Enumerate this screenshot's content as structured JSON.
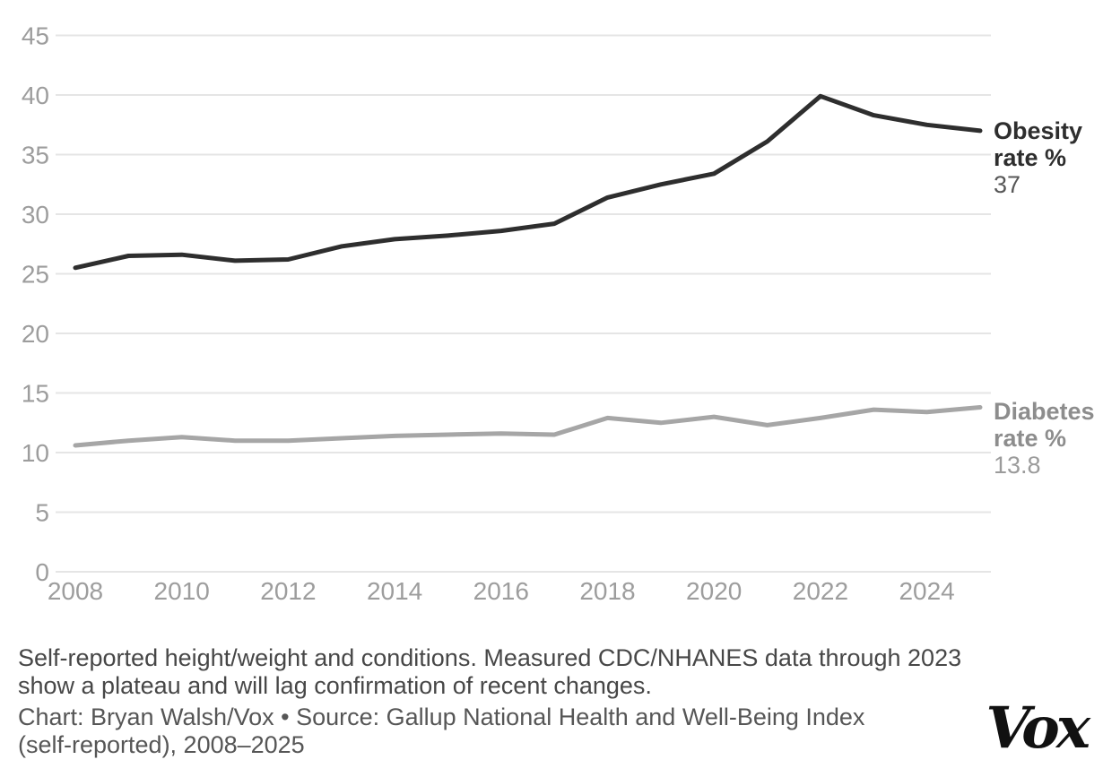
{
  "chart_data": {
    "type": "line",
    "x": [
      2008,
      2009,
      2010,
      2011,
      2012,
      2013,
      2014,
      2015,
      2016,
      2017,
      2018,
      2019,
      2020,
      2021,
      2022,
      2023,
      2024,
      2025
    ],
    "series": [
      {
        "key": "diabetes",
        "name": "Diabetes rate %",
        "values": [
          10.6,
          11.0,
          11.3,
          11.0,
          11.0,
          11.2,
          11.4,
          11.5,
          11.6,
          11.5,
          12.9,
          12.5,
          13.0,
          12.3,
          12.9,
          13.6,
          13.4,
          13.8
        ],
        "color": "#a6a6a6"
      },
      {
        "key": "obesity",
        "name": "Obesity rate %",
        "values": [
          25.5,
          26.5,
          26.6,
          26.1,
          26.2,
          27.3,
          27.9,
          28.2,
          28.6,
          29.2,
          31.4,
          32.5,
          33.4,
          36.1,
          39.9,
          38.3,
          37.5,
          37.0
        ],
        "color": "#2e2e2e"
      }
    ],
    "ylim": [
      0,
      45
    ],
    "y_tick_step": 5,
    "y_tick_labels": [
      "0",
      "5",
      "10",
      "15",
      "20",
      "25",
      "30",
      "35",
      "40",
      "45"
    ],
    "x_tick_years": [
      2008,
      2010,
      2012,
      2014,
      2016,
      2018,
      2020,
      2022,
      2024
    ],
    "grid": "horizontal-only",
    "legend_position": "right-of-line-end"
  },
  "annotations": {
    "obesity_label": "Obesity rate %",
    "obesity_value": "37",
    "diabetes_label": "Diabetes rate %",
    "diabetes_value": "13.8"
  },
  "footer": {
    "note": "Self-reported height/weight and conditions. Measured CDC/NHANES data through 2023 show a plateau and will lag confirmation of recent changes.",
    "credit": "Chart: Bryan Walsh/Vox • Source: Gallup National Health and Well-Being Index (self-reported), 2008–2025"
  },
  "branding": {
    "logo_text": "Vox"
  },
  "colors": {
    "obesity_line": "#2e2e2e",
    "diabetes_line": "#a6a6a6",
    "gridline": "#e5e5e5",
    "tick_label": "#9d9d9d",
    "note_text": "#474747",
    "credit_text": "#565656",
    "logo": "#111111"
  }
}
